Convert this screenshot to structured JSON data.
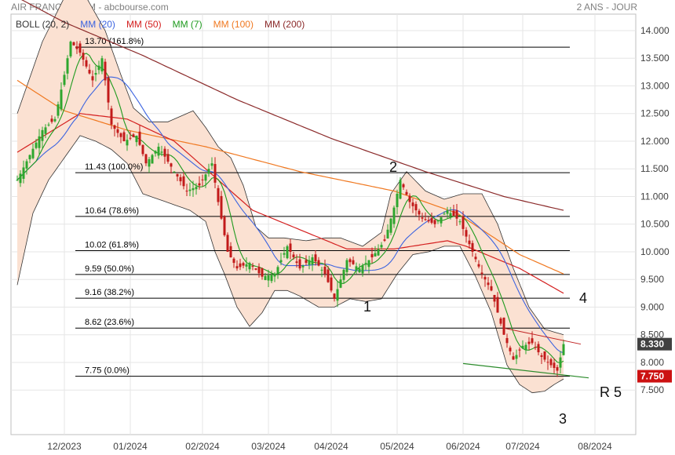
{
  "header": {
    "title": "AIR FRANCE - KLM - abcbourse.com",
    "period": "2 ANS - JOUR"
  },
  "colors": {
    "boll": "#333333",
    "mm20": "#3b63e0",
    "mm50": "#d42020",
    "mm7": "#1e9a1e",
    "mm100": "#f07820",
    "mm200": "#8b2a2a",
    "band_fill": "#fbe1d2",
    "up": "#2ea62e",
    "down": "#c21a1a",
    "fib": "#000000",
    "last_badge": "#404040",
    "support_badge": "#cc1111",
    "trend": "#2a8a2a"
  },
  "legend": [
    {
      "label": "BOLL (20, 2)",
      "color": "#333333"
    },
    {
      "label": "MM (20)",
      "color": "#3b63e0"
    },
    {
      "label": "MM (50)",
      "color": "#d42020"
    },
    {
      "label": "MM (7)",
      "color": "#1e9a1e"
    },
    {
      "label": "MM (100)",
      "color": "#f07820"
    },
    {
      "label": "MM (200)",
      "color": "#8b2a2a"
    }
  ],
  "chart_data": {
    "type": "candlestick",
    "x_ticks": [
      "12/2023",
      "01/2024",
      "02/2024",
      "03/2024",
      "04/2024",
      "05/2024",
      "06/2024",
      "07/2024",
      "08/2024"
    ],
    "y_ticks": [
      "14.000",
      "13.500",
      "13.000",
      "12.500",
      "12.000",
      "11.500",
      "11.000",
      "10.500",
      "10.000",
      "9.500",
      "9.000",
      "8.500",
      "8.000",
      "7.500"
    ],
    "ylim": [
      7.35,
      14.1
    ],
    "fib_levels": [
      {
        "value": 13.7,
        "label": "13.70  (161.8%)"
      },
      {
        "value": 11.43,
        "label": "11.43  (100.0%)"
      },
      {
        "value": 10.64,
        "label": "10.64  (78.6%)"
      },
      {
        "value": 10.02,
        "label": "10.02  (61.8%)"
      },
      {
        "value": 9.59,
        "label": "9.59  (50.0%)"
      },
      {
        "value": 9.16,
        "label": "9.16  (38.2%)"
      },
      {
        "value": 8.62,
        "label": "8.62  (23.6%)"
      },
      {
        "value": 7.75,
        "label": "7.75  (0.0%)"
      }
    ],
    "last_price": "8.330",
    "last_value": 8.33,
    "support_price": "7.750",
    "support_value": 7.75,
    "annotations": [
      "1",
      "2",
      "3",
      "4",
      "R 5"
    ],
    "month_starts": [
      {
        "month": "12/2023",
        "day": 15
      },
      {
        "month": "01/2024",
        "day": 36
      },
      {
        "month": "02/2024",
        "day": 59
      },
      {
        "month": "03/2024",
        "day": 80
      },
      {
        "month": "04/2024",
        "day": 100
      },
      {
        "month": "05/2024",
        "day": 121
      },
      {
        "month": "06/2024",
        "day": 142
      },
      {
        "month": "07/2024",
        "day": 161
      },
      {
        "month": "08/2024",
        "day": 184
      }
    ],
    "close_anchors": [
      [
        0,
        11.3
      ],
      [
        4,
        11.75
      ],
      [
        8,
        12.2
      ],
      [
        12,
        12.4
      ],
      [
        15,
        13.2
      ],
      [
        17,
        13.8
      ],
      [
        20,
        13.6
      ],
      [
        24,
        13.1
      ],
      [
        27,
        13.5
      ],
      [
        30,
        12.3
      ],
      [
        34,
        12.0
      ],
      [
        38,
        12.1
      ],
      [
        41,
        11.6
      ],
      [
        45,
        11.9
      ],
      [
        50,
        11.45
      ],
      [
        54,
        11.1
      ],
      [
        58,
        11.2
      ],
      [
        62,
        11.6
      ],
      [
        64,
        10.9
      ],
      [
        67,
        10.0
      ],
      [
        70,
        9.7
      ],
      [
        74,
        9.8
      ],
      [
        78,
        9.55
      ],
      [
        82,
        9.6
      ],
      [
        86,
        10.1
      ],
      [
        90,
        9.7
      ],
      [
        94,
        9.9
      ],
      [
        98,
        9.6
      ],
      [
        101,
        9.15
      ],
      [
        105,
        9.85
      ],
      [
        109,
        9.7
      ],
      [
        113,
        9.9
      ],
      [
        117,
        10.2
      ],
      [
        120,
        10.8
      ],
      [
        122,
        11.3
      ],
      [
        125,
        10.9
      ],
      [
        129,
        10.6
      ],
      [
        133,
        10.5
      ],
      [
        137,
        10.75
      ],
      [
        141,
        10.55
      ],
      [
        145,
        10.0
      ],
      [
        148,
        9.6
      ],
      [
        151,
        9.3
      ],
      [
        155,
        8.5
      ],
      [
        158,
        8.05
      ],
      [
        161,
        8.3
      ],
      [
        164,
        8.35
      ],
      [
        167,
        8.1
      ],
      [
        170,
        7.95
      ],
      [
        172,
        7.85
      ],
      [
        174,
        8.33
      ]
    ],
    "ma200_anchors": [
      [
        0,
        14.6
      ],
      [
        15,
        14.15
      ],
      [
        40,
        13.55
      ],
      [
        70,
        12.75
      ],
      [
        100,
        12.05
      ],
      [
        130,
        11.45
      ],
      [
        155,
        11.0
      ],
      [
        174,
        10.75
      ]
    ],
    "ma100_anchors": [
      [
        0,
        13.1
      ],
      [
        15,
        12.55
      ],
      [
        35,
        12.2
      ],
      [
        60,
        11.9
      ],
      [
        90,
        11.45
      ],
      [
        120,
        11.1
      ],
      [
        140,
        10.7
      ],
      [
        160,
        9.95
      ],
      [
        174,
        9.6
      ]
    ],
    "ma50_anchors": [
      [
        0,
        11.8
      ],
      [
        10,
        12.15
      ],
      [
        20,
        12.5
      ],
      [
        35,
        12.4
      ],
      [
        50,
        12.0
      ],
      [
        62,
        11.4
      ],
      [
        75,
        10.75
      ],
      [
        90,
        10.4
      ],
      [
        105,
        10.05
      ],
      [
        120,
        10.05
      ],
      [
        137,
        10.2
      ],
      [
        143,
        10.1
      ],
      [
        160,
        9.7
      ],
      [
        174,
        9.25
      ]
    ],
    "band_upper_anchors": [
      [
        0,
        12.5
      ],
      [
        8,
        13.8
      ],
      [
        15,
        14.6
      ],
      [
        22,
        14.6
      ],
      [
        28,
        14.0
      ],
      [
        33,
        13.2
      ],
      [
        37,
        12.6
      ],
      [
        42,
        12.35
      ],
      [
        48,
        12.35
      ],
      [
        52,
        12.45
      ],
      [
        56,
        12.55
      ],
      [
        60,
        12.25
      ],
      [
        64,
        11.9
      ],
      [
        68,
        11.7
      ],
      [
        72,
        11.2
      ],
      [
        76,
        10.45
      ],
      [
        80,
        10.25
      ],
      [
        85,
        10.25
      ],
      [
        92,
        10.2
      ],
      [
        98,
        10.25
      ],
      [
        103,
        10.25
      ],
      [
        110,
        10.1
      ],
      [
        116,
        10.35
      ],
      [
        119,
        11.05
      ],
      [
        124,
        11.45
      ],
      [
        130,
        11.1
      ],
      [
        136,
        10.95
      ],
      [
        142,
        11.05
      ],
      [
        148,
        11.05
      ],
      [
        153,
        10.5
      ],
      [
        158,
        9.7
      ],
      [
        163,
        9.0
      ],
      [
        168,
        8.6
      ],
      [
        174,
        8.5
      ]
    ],
    "band_lower_anchors": [
      [
        0,
        9.4
      ],
      [
        5,
        10.7
      ],
      [
        10,
        11.3
      ],
      [
        15,
        11.7
      ],
      [
        20,
        12.1
      ],
      [
        25,
        12.0
      ],
      [
        30,
        11.85
      ],
      [
        35,
        11.6
      ],
      [
        40,
        11.05
      ],
      [
        45,
        10.95
      ],
      [
        50,
        10.85
      ],
      [
        55,
        10.75
      ],
      [
        60,
        10.55
      ],
      [
        63,
        10.0
      ],
      [
        66,
        9.6
      ],
      [
        70,
        9.0
      ],
      [
        74,
        8.65
      ],
      [
        78,
        8.9
      ],
      [
        82,
        9.3
      ],
      [
        86,
        9.3
      ],
      [
        90,
        9.2
      ],
      [
        96,
        9.0
      ],
      [
        101,
        9.0
      ],
      [
        106,
        9.15
      ],
      [
        111,
        9.1
      ],
      [
        116,
        9.15
      ],
      [
        121,
        9.6
      ],
      [
        126,
        9.95
      ],
      [
        131,
        10.0
      ],
      [
        136,
        10.1
      ],
      [
        141,
        10.1
      ],
      [
        146,
        9.55
      ],
      [
        151,
        8.9
      ],
      [
        156,
        7.95
      ],
      [
        160,
        7.6
      ],
      [
        164,
        7.45
      ],
      [
        168,
        7.48
      ],
      [
        171,
        7.6
      ],
      [
        174,
        7.7
      ]
    ]
  }
}
